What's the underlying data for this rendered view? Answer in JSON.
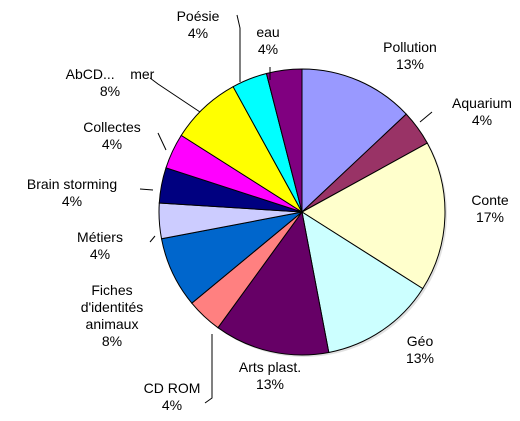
{
  "chart_data": {
    "type": "pie",
    "title": "",
    "start_angle_deg": 0,
    "direction": "clockwise",
    "slices": [
      {
        "label": "Pollution",
        "value": 13,
        "percent_label": "13%",
        "color": "#9999ff"
      },
      {
        "label": "Aquarium",
        "value": 4,
        "percent_label": "4%",
        "color": "#993366"
      },
      {
        "label": "Conte",
        "value": 17,
        "percent_label": "17%",
        "color": "#ffffcc"
      },
      {
        "label": "Géo",
        "value": 13,
        "percent_label": "13%",
        "color": "#ccffff"
      },
      {
        "label": "Arts plast.",
        "value": 13,
        "percent_label": "13%",
        "color": "#660066"
      },
      {
        "label": "CD ROM",
        "value": 4,
        "percent_label": "4%",
        "color": "#ff8080"
      },
      {
        "label": "Fiches d'identités animaux",
        "label_lines": [
          "Fiches",
          "d'identités",
          "animaux"
        ],
        "value": 8,
        "percent_label": "8%",
        "color": "#0066cc"
      },
      {
        "label": "Métiers",
        "value": 4,
        "percent_label": "4%",
        "color": "#ccccff"
      },
      {
        "label": "Brain storming",
        "value": 4,
        "percent_label": "4%",
        "color": "#000080"
      },
      {
        "label": "Collectes",
        "value": 4,
        "percent_label": "4%",
        "color": "#ff00ff"
      },
      {
        "label": "AbCD... mer",
        "label_lines": [
          "AbCD...    mer"
        ],
        "value": 8,
        "percent_label": "8%",
        "color": "#ffff00"
      },
      {
        "label": "Poésie",
        "value": 4,
        "percent_label": "4%",
        "color": "#00ffff"
      },
      {
        "label": "eau",
        "value": 4,
        "percent_label": "4%",
        "color": "#800080"
      }
    ]
  }
}
